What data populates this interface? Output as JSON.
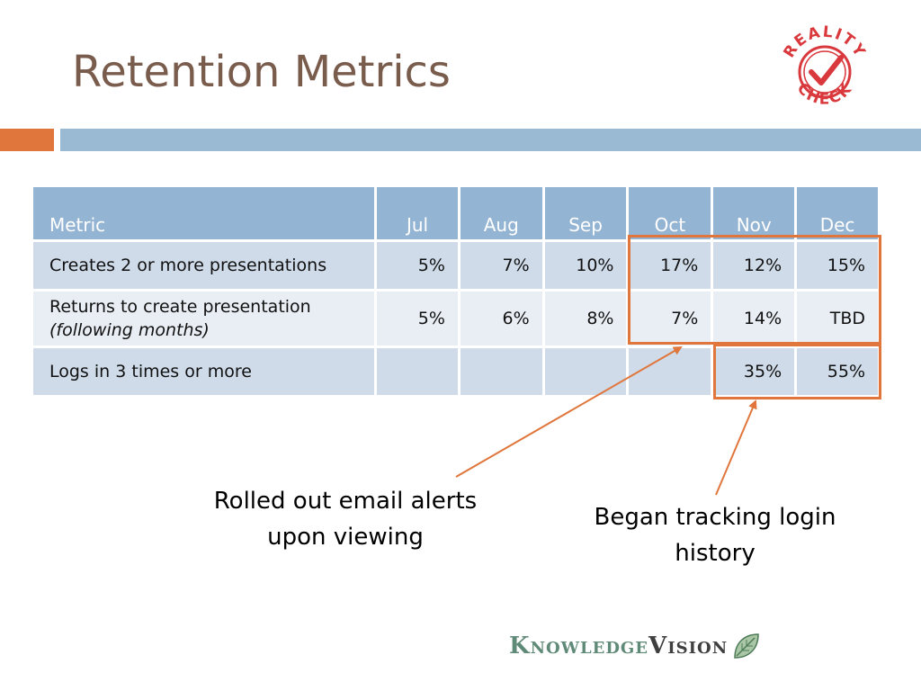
{
  "slide": {
    "title": "Retention Metrics"
  },
  "stamp": {
    "top_text": "REALITY",
    "bottom_text": "CHECK",
    "color": "#d9393d"
  },
  "table": {
    "headers": [
      "Metric",
      "Jul",
      "Aug",
      "Sep",
      "Oct",
      "Nov",
      "Dec"
    ],
    "rows": [
      {
        "label": "Creates 2 or more presentations",
        "sublabel": "",
        "values": [
          "5%",
          "7%",
          "10%",
          "17%",
          "12%",
          "15%"
        ]
      },
      {
        "label": "Returns to create presentation",
        "sublabel": "(following months)",
        "values": [
          "5%",
          "6%",
          "8%",
          "7%",
          "14%",
          "TBD"
        ]
      },
      {
        "label": "Logs in 3 times or more",
        "sublabel": "",
        "values": [
          "",
          "",
          "",
          "",
          "35%",
          "55%"
        ]
      }
    ]
  },
  "callouts": {
    "email_line1": "Rolled out email alerts",
    "email_line2": "upon viewing",
    "login_line1": "Began tracking login",
    "login_line2": "history"
  },
  "logo": {
    "part1": "Knowledge",
    "part2": "Vision",
    "icon": "leaf-icon"
  },
  "colors": {
    "accent_orange": "#e0763b",
    "accent_blue": "#9ab9d2",
    "title_brown": "#7a5c4d"
  }
}
